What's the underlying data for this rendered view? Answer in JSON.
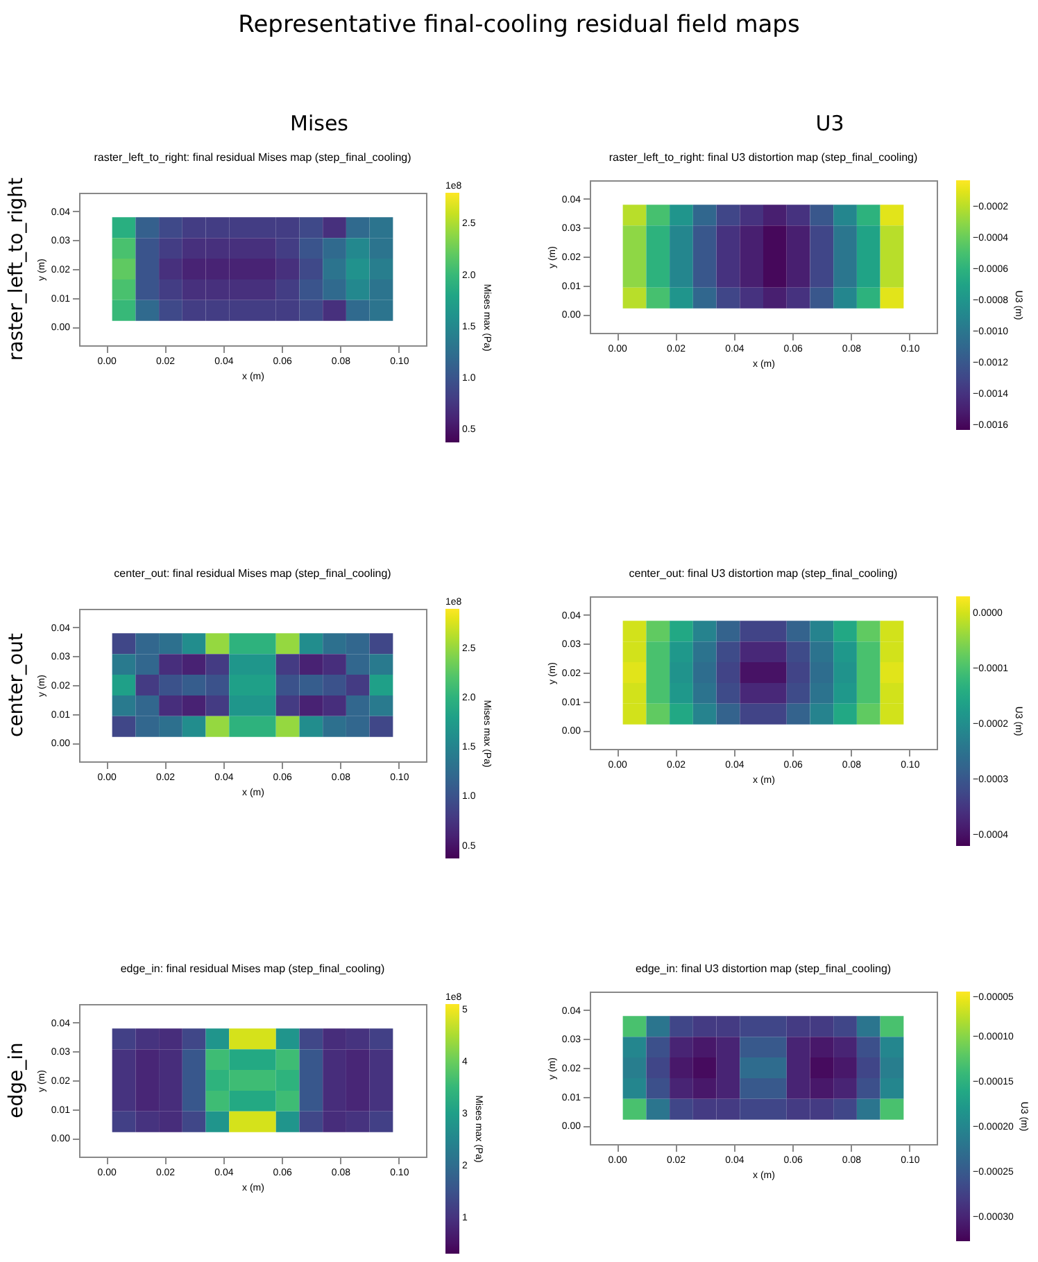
{
  "chart_data": [
    {
      "type": "other",
      "title": "Representative final-cooling residual field maps",
      "annotations": [
        "Mises",
        "U3",
        "raster_left_to_right",
        "center_out",
        "edge_in"
      ]
    },
    {
      "type": "heatmap",
      "title": "raster_left_to_right: final residual Mises map (step_final_cooling)",
      "xlabel": "x (m)",
      "ylabel": "y (m)",
      "clabel": "Mises max (Pa)",
      "annotations": [
        "1e8"
      ],
      "x": [
        0.006,
        0.014,
        0.022,
        0.03,
        0.038,
        0.046,
        0.054,
        0.062,
        0.07,
        0.078,
        0.086,
        0.094
      ],
      "y": [
        0.0344,
        0.0272,
        0.02,
        0.0128,
        0.0056
      ],
      "cells": [
        [
          1.9,
          1.1,
          0.9,
          0.8,
          0.8,
          0.8,
          0.8,
          0.8,
          0.9,
          0.7,
          1.2,
          1.3
        ],
        [
          2.1,
          1.0,
          0.8,
          0.7,
          0.7,
          0.7,
          0.7,
          0.8,
          1.0,
          1.2,
          1.5,
          1.3
        ],
        [
          2.2,
          1.0,
          0.7,
          0.6,
          0.6,
          0.6,
          0.6,
          0.7,
          0.9,
          1.3,
          1.6,
          1.4
        ],
        [
          2.1,
          1.0,
          0.8,
          0.7,
          0.7,
          0.7,
          0.7,
          0.8,
          1.0,
          1.2,
          1.5,
          1.3
        ],
        [
          2.0,
          1.2,
          0.9,
          0.8,
          0.8,
          0.8,
          0.8,
          0.8,
          0.9,
          0.7,
          1.2,
          1.3
        ]
      ],
      "clim": [
        0.37,
        2.8
      ],
      "cticks": [
        {
          "value": 0.5,
          "label": "0.5"
        },
        {
          "value": 1,
          "label": "1.0"
        },
        {
          "value": 1.5,
          "label": "1.5"
        },
        {
          "value": 2,
          "label": "2.0"
        },
        {
          "value": 2.5,
          "label": "2.5"
        }
      ],
      "xlim": [
        -0.0093,
        0.1093
      ],
      "ylim": [
        -0.0065,
        0.0465
      ],
      "xticks": [
        {
          "value": 0,
          "label": "0.00"
        },
        {
          "value": 0.02,
          "label": "0.02"
        },
        {
          "value": 0.04,
          "label": "0.04"
        },
        {
          "value": 0.06,
          "label": "0.06"
        },
        {
          "value": 0.08,
          "label": "0.08"
        },
        {
          "value": 0.1,
          "label": "0.10"
        }
      ],
      "yticks": [
        {
          "value": 0,
          "label": "0.00"
        },
        {
          "value": 0.01,
          "label": "0.01"
        },
        {
          "value": 0.02,
          "label": "0.02"
        },
        {
          "value": 0.03,
          "label": "0.03"
        },
        {
          "value": 0.04,
          "label": "0.04"
        }
      ]
    },
    {
      "type": "heatmap",
      "title": "raster_left_to_right: final U3 distortion map (step_final_cooling)",
      "xlabel": "x (m)",
      "ylabel": "y (m)",
      "clabel": "U3 (m)",
      "x": [
        0.006,
        0.014,
        0.022,
        0.03,
        0.038,
        0.046,
        0.054,
        0.062,
        0.07,
        0.078,
        0.086,
        0.094
      ],
      "y": [
        0.0344,
        0.0272,
        0.02,
        0.0128,
        0.0056
      ],
      "cells": [
        [
          -0.0002,
          -0.0005,
          -0.0008,
          -0.0011,
          -0.0013,
          -0.0014,
          -0.0015,
          -0.0014,
          -0.0012,
          -0.0009,
          -0.0006,
          -0.0001
        ],
        [
          -0.0003,
          -0.0006,
          -0.0009,
          -0.0012,
          -0.0014,
          -0.0015,
          -0.0016,
          -0.0015,
          -0.0013,
          -0.001,
          -0.0007,
          -0.0002
        ],
        [
          -0.0003,
          -0.0006,
          -0.0009,
          -0.0012,
          -0.0014,
          -0.0015,
          -0.0016,
          -0.0015,
          -0.0013,
          -0.001,
          -0.0007,
          -0.0002
        ],
        [
          -0.0003,
          -0.0006,
          -0.0009,
          -0.0012,
          -0.0014,
          -0.0015,
          -0.0016,
          -0.0015,
          -0.0013,
          -0.001,
          -0.0007,
          -0.0002
        ],
        [
          -0.0002,
          -0.0005,
          -0.0008,
          -0.0011,
          -0.0013,
          -0.0014,
          -0.0015,
          -0.0014,
          -0.0012,
          -0.0009,
          -0.0006,
          -0.0001
        ]
      ],
      "clim": [
        -0.00163,
        -3e-05
      ],
      "cticks": [
        {
          "value": -0.0002,
          "label": "−0.0002"
        },
        {
          "value": -0.0004,
          "label": "−0.0004"
        },
        {
          "value": -0.0006,
          "label": "−0.0006"
        },
        {
          "value": -0.0008,
          "label": "−0.0008"
        },
        {
          "value": -0.001,
          "label": "−0.0010"
        },
        {
          "value": -0.0012,
          "label": "−0.0012"
        },
        {
          "value": -0.0014,
          "label": "−0.0014"
        },
        {
          "value": -0.0016,
          "label": "−0.0016"
        }
      ],
      "xlim": [
        -0.0093,
        0.1093
      ],
      "ylim": [
        -0.0065,
        0.0465
      ],
      "xticks": [
        {
          "value": 0,
          "label": "0.00"
        },
        {
          "value": 0.02,
          "label": "0.02"
        },
        {
          "value": 0.04,
          "label": "0.04"
        },
        {
          "value": 0.06,
          "label": "0.06"
        },
        {
          "value": 0.08,
          "label": "0.08"
        },
        {
          "value": 0.1,
          "label": "0.10"
        }
      ],
      "yticks": [
        {
          "value": 0,
          "label": "0.00"
        },
        {
          "value": 0.01,
          "label": "0.01"
        },
        {
          "value": 0.02,
          "label": "0.02"
        },
        {
          "value": 0.03,
          "label": "0.03"
        },
        {
          "value": 0.04,
          "label": "0.04"
        }
      ]
    },
    {
      "type": "heatmap",
      "title": "center_out: final residual Mises map (step_final_cooling)",
      "xlabel": "x (m)",
      "ylabel": "y (m)",
      "clabel": "Mises max (Pa)",
      "annotations": [
        "1e8"
      ],
      "x": [
        0.006,
        0.014,
        0.022,
        0.03,
        0.038,
        0.046,
        0.054,
        0.062,
        0.07,
        0.078,
        0.086,
        0.094
      ],
      "y": [
        0.0344,
        0.0272,
        0.02,
        0.0128,
        0.0056
      ],
      "cells": [
        [
          0.9,
          1.2,
          1.3,
          1.6,
          2.5,
          2.0,
          2.0,
          2.5,
          1.6,
          1.3,
          1.2,
          0.9
        ],
        [
          1.4,
          1.2,
          0.7,
          0.6,
          0.8,
          1.7,
          1.7,
          0.8,
          0.6,
          0.7,
          1.2,
          1.4
        ],
        [
          1.8,
          0.8,
          1.0,
          1.1,
          1.0,
          1.8,
          1.8,
          1.0,
          1.1,
          1.0,
          0.8,
          1.8
        ],
        [
          1.4,
          1.2,
          0.7,
          0.6,
          0.8,
          1.7,
          1.7,
          0.8,
          0.6,
          0.7,
          1.2,
          1.4
        ],
        [
          0.9,
          1.2,
          1.3,
          1.6,
          2.5,
          2.0,
          2.0,
          2.5,
          1.6,
          1.3,
          1.2,
          0.9
        ]
      ],
      "clim": [
        0.37,
        2.9
      ],
      "cticks": [
        {
          "value": 0.5,
          "label": "0.5"
        },
        {
          "value": 1,
          "label": "1.0"
        },
        {
          "value": 1.5,
          "label": "1.5"
        },
        {
          "value": 2,
          "label": "2.0"
        },
        {
          "value": 2.5,
          "label": "2.5"
        }
      ],
      "xlim": [
        -0.0093,
        0.1093
      ],
      "ylim": [
        -0.0065,
        0.0465
      ],
      "xticks": [
        {
          "value": 0,
          "label": "0.00"
        },
        {
          "value": 0.02,
          "label": "0.02"
        },
        {
          "value": 0.04,
          "label": "0.04"
        },
        {
          "value": 0.06,
          "label": "0.06"
        },
        {
          "value": 0.08,
          "label": "0.08"
        },
        {
          "value": 0.1,
          "label": "0.10"
        }
      ],
      "yticks": [
        {
          "value": 0,
          "label": "0.00"
        },
        {
          "value": 0.01,
          "label": "0.01"
        },
        {
          "value": 0.02,
          "label": "0.02"
        },
        {
          "value": 0.03,
          "label": "0.03"
        },
        {
          "value": 0.04,
          "label": "0.04"
        }
      ]
    },
    {
      "type": "heatmap",
      "title": "center_out: final U3 distortion map (step_final_cooling)",
      "xlabel": "x (m)",
      "ylabel": "y (m)",
      "clabel": "U3 (m)",
      "x": [
        0.006,
        0.014,
        0.022,
        0.03,
        0.038,
        0.046,
        0.054,
        0.062,
        0.07,
        0.078,
        0.086,
        0.094
      ],
      "y": [
        0.0344,
        0.0272,
        0.02,
        0.0128,
        0.0056
      ],
      "cells": [
        [
          0.0,
          -8e-05,
          -0.00015,
          -0.00022,
          -0.00028,
          -0.00033,
          -0.00033,
          -0.00028,
          -0.00022,
          -0.00015,
          -8e-05,
          0.0
        ],
        [
          0.0,
          -0.0001,
          -0.00018,
          -0.00025,
          -0.00032,
          -0.00037,
          -0.00037,
          -0.00032,
          -0.00025,
          -0.00018,
          -0.0001,
          0.0
        ],
        [
          1e-05,
          -0.0001,
          -0.00019,
          -0.00026,
          -0.00033,
          -0.0004,
          -0.0004,
          -0.00033,
          -0.00026,
          -0.00019,
          -0.0001,
          1e-05
        ],
        [
          0.0,
          -0.0001,
          -0.00018,
          -0.00025,
          -0.00032,
          -0.00037,
          -0.00037,
          -0.00032,
          -0.00025,
          -0.00018,
          -0.0001,
          0.0
        ],
        [
          0.0,
          -8e-05,
          -0.00015,
          -0.00022,
          -0.00028,
          -0.00033,
          -0.00033,
          -0.00028,
          -0.00022,
          -0.00015,
          -8e-05,
          0.0
        ]
      ],
      "clim": [
        -0.00042,
        3e-05
      ],
      "cticks": [
        {
          "value": 0,
          "label": "0.0000"
        },
        {
          "value": -0.0001,
          "label": "−0.0001"
        },
        {
          "value": -0.0002,
          "label": "−0.0002"
        },
        {
          "value": -0.0003,
          "label": "−0.0003"
        },
        {
          "value": -0.0004,
          "label": "−0.0004"
        }
      ],
      "xlim": [
        -0.0093,
        0.1093
      ],
      "ylim": [
        -0.0065,
        0.0465
      ],
      "xticks": [
        {
          "value": 0,
          "label": "0.00"
        },
        {
          "value": 0.02,
          "label": "0.02"
        },
        {
          "value": 0.04,
          "label": "0.04"
        },
        {
          "value": 0.06,
          "label": "0.06"
        },
        {
          "value": 0.08,
          "label": "0.08"
        },
        {
          "value": 0.1,
          "label": "0.10"
        }
      ],
      "yticks": [
        {
          "value": 0,
          "label": "0.00"
        },
        {
          "value": 0.01,
          "label": "0.01"
        },
        {
          "value": 0.02,
          "label": "0.02"
        },
        {
          "value": 0.03,
          "label": "0.03"
        },
        {
          "value": 0.04,
          "label": "0.04"
        }
      ]
    },
    {
      "type": "heatmap",
      "title": "edge_in: final residual Mises map (step_final_cooling)",
      "xlabel": "x (m)",
      "ylabel": "y (m)",
      "clabel": "Mises max (Pa)",
      "annotations": [
        "1e8"
      ],
      "x": [
        0.006,
        0.014,
        0.022,
        0.03,
        0.038,
        0.046,
        0.054,
        0.062,
        0.07,
        0.078,
        0.086,
        0.094
      ],
      "y": [
        0.0344,
        0.0272,
        0.02,
        0.0128,
        0.0056
      ],
      "cells": [
        [
          1.2,
          1.0,
          0.9,
          1.3,
          2.8,
          4.8,
          4.8,
          2.8,
          1.3,
          0.9,
          1.0,
          1.2
        ],
        [
          1.0,
          0.8,
          0.9,
          1.6,
          3.6,
          3.2,
          3.2,
          3.6,
          1.6,
          0.9,
          0.8,
          1.0
        ],
        [
          1.0,
          0.8,
          0.9,
          1.6,
          3.4,
          3.6,
          3.6,
          3.4,
          1.6,
          0.9,
          0.8,
          1.0
        ],
        [
          1.0,
          0.8,
          0.9,
          1.6,
          3.6,
          3.2,
          3.2,
          3.6,
          1.6,
          0.9,
          0.8,
          1.0
        ],
        [
          1.2,
          1.0,
          0.9,
          1.3,
          2.8,
          4.8,
          4.8,
          2.8,
          1.3,
          0.9,
          1.0,
          1.2
        ]
      ],
      "clim": [
        0.3,
        5.1
      ],
      "cticks": [
        1,
        2,
        3,
        4,
        5
      ],
      "xlim": [
        -0.0093,
        0.1093
      ],
      "ylim": [
        -0.0065,
        0.0465
      ],
      "xticks": [
        {
          "value": 0,
          "label": "0.00"
        },
        {
          "value": 0.02,
          "label": "0.02"
        },
        {
          "value": 0.04,
          "label": "0.04"
        },
        {
          "value": 0.06,
          "label": "0.06"
        },
        {
          "value": 0.08,
          "label": "0.08"
        },
        {
          "value": 0.1,
          "label": "0.10"
        }
      ],
      "yticks": [
        {
          "value": 0,
          "label": "0.00"
        },
        {
          "value": 0.01,
          "label": "0.01"
        },
        {
          "value": 0.02,
          "label": "0.02"
        },
        {
          "value": 0.03,
          "label": "0.03"
        },
        {
          "value": 0.04,
          "label": "0.04"
        }
      ]
    },
    {
      "type": "heatmap",
      "title": "edge_in: final U3 distortion map (step_final_cooling)",
      "xlabel": "x (m)",
      "ylabel": "y (m)",
      "clabel": "U3 (m)",
      "x": [
        0.006,
        0.014,
        0.022,
        0.03,
        0.038,
        0.046,
        0.054,
        0.062,
        0.07,
        0.078,
        0.086,
        0.094
      ],
      "y": [
        0.0344,
        0.0272,
        0.02,
        0.0128,
        0.0056
      ],
      "cells": [
        [
          -0.00013,
          -0.00022,
          -0.00027,
          -0.00028,
          -0.00028,
          -0.00027,
          -0.00027,
          -0.00028,
          -0.00028,
          -0.00027,
          -0.00022,
          -0.00013
        ],
        [
          -0.0002,
          -0.00026,
          -0.0003,
          -0.00031,
          -0.0003,
          -0.00025,
          -0.00025,
          -0.0003,
          -0.00031,
          -0.0003,
          -0.00026,
          -0.0002
        ],
        [
          -0.00021,
          -0.00027,
          -0.00031,
          -0.00032,
          -0.0003,
          -0.00023,
          -0.00023,
          -0.0003,
          -0.00032,
          -0.00031,
          -0.00027,
          -0.00021
        ],
        [
          -0.0002,
          -0.00026,
          -0.0003,
          -0.00031,
          -0.0003,
          -0.00025,
          -0.00025,
          -0.0003,
          -0.00031,
          -0.0003,
          -0.00026,
          -0.0002
        ],
        [
          -0.00013,
          -0.00022,
          -0.00027,
          -0.00028,
          -0.00028,
          -0.00027,
          -0.00027,
          -0.00028,
          -0.00028,
          -0.00027,
          -0.00022,
          -0.00013
        ]
      ],
      "clim": [
        -0.000327,
        -5e-05
      ],
      "cticks": [
        {
          "value": -5e-05,
          "label": "−0.00005"
        },
        {
          "value": -0.0001,
          "label": "−0.00010"
        },
        {
          "value": -0.00015,
          "label": "−0.00015"
        },
        {
          "value": -0.0002,
          "label": "−0.00020"
        },
        {
          "value": -0.00025,
          "label": "−0.00025"
        },
        {
          "value": -0.0003,
          "label": "−0.00030"
        }
      ],
      "xlim": [
        -0.0093,
        0.1093
      ],
      "ylim": [
        -0.0065,
        0.0465
      ],
      "xticks": [
        {
          "value": 0,
          "label": "0.00"
        },
        {
          "value": 0.02,
          "label": "0.02"
        },
        {
          "value": 0.04,
          "label": "0.04"
        },
        {
          "value": 0.06,
          "label": "0.06"
        },
        {
          "value": 0.08,
          "label": "0.08"
        },
        {
          "value": 0.1,
          "label": "0.10"
        }
      ],
      "yticks": [
        {
          "value": 0,
          "label": "0.00"
        },
        {
          "value": 0.01,
          "label": "0.01"
        },
        {
          "value": 0.02,
          "label": "0.02"
        },
        {
          "value": 0.03,
          "label": "0.03"
        },
        {
          "value": 0.04,
          "label": "0.04"
        }
      ]
    }
  ]
}
